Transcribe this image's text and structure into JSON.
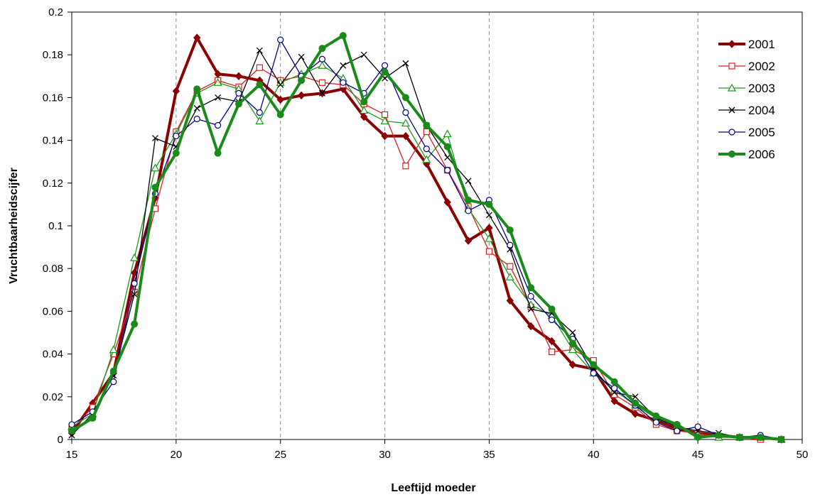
{
  "chart_data": {
    "type": "line",
    "title": "",
    "xlabel": "Leeftijd moeder",
    "ylabel": "Vruchtbaarheidscijfer",
    "xlim": [
      15,
      50
    ],
    "ylim": [
      0,
      0.2
    ],
    "xticks": [
      15,
      20,
      25,
      30,
      35,
      40,
      45,
      50
    ],
    "yticks": [
      0,
      0.02,
      0.04,
      0.06,
      0.08,
      0.1,
      0.12,
      0.14,
      0.16,
      0.18,
      0.2
    ],
    "xtick_labels": [
      "15",
      "20",
      "25",
      "30",
      "35",
      "40",
      "45",
      "50"
    ],
    "ytick_labels": [
      "0",
      "0.02",
      "0.04",
      "0.06",
      "0.08",
      "0.1",
      "0.12",
      "0.14",
      "0.16",
      "0.18",
      "0.2"
    ],
    "grid": "vertical dashed",
    "legend": "top-right",
    "x": [
      15,
      16,
      17,
      18,
      19,
      20,
      21,
      22,
      23,
      24,
      25,
      26,
      27,
      28,
      29,
      30,
      31,
      32,
      33,
      34,
      35,
      36,
      37,
      38,
      39,
      40,
      41,
      42,
      43,
      44,
      45,
      46,
      47,
      48,
      49
    ],
    "series": [
      {
        "name": "2001",
        "color": "#8b0000",
        "marker": "diamond",
        "width": 4,
        "values": [
          0.003,
          0.017,
          0.031,
          0.078,
          0.113,
          0.163,
          0.188,
          0.171,
          0.17,
          0.168,
          0.159,
          0.161,
          0.162,
          0.164,
          0.151,
          0.142,
          0.142,
          0.129,
          0.111,
          0.093,
          0.099,
          0.065,
          0.053,
          0.046,
          0.035,
          0.033,
          0.018,
          0.012,
          0.009,
          0.005,
          0.003,
          0.002,
          0.001,
          0.001,
          0.0
        ]
      },
      {
        "name": "2002",
        "color": "#e8191e",
        "marker": "square",
        "width": 1.3,
        "values": [
          0.005,
          0.015,
          0.04,
          0.069,
          0.108,
          0.144,
          0.163,
          0.168,
          0.165,
          0.174,
          0.168,
          0.17,
          0.167,
          0.166,
          0.157,
          0.152,
          0.128,
          0.144,
          0.126,
          0.109,
          0.088,
          0.081,
          0.062,
          0.041,
          0.042,
          0.037,
          0.021,
          0.015,
          0.007,
          0.004,
          0.003,
          0.001,
          0.001,
          0.0,
          0.0
        ]
      },
      {
        "name": "2003",
        "color": "#1a9a1a",
        "marker": "triangle",
        "width": 1.3,
        "values": [
          0.006,
          0.012,
          0.042,
          0.085,
          0.127,
          0.143,
          0.162,
          0.167,
          0.164,
          0.149,
          0.167,
          0.171,
          0.175,
          0.169,
          0.154,
          0.149,
          0.148,
          0.131,
          0.143,
          0.108,
          0.094,
          0.076,
          0.063,
          0.058,
          0.042,
          0.031,
          0.023,
          0.016,
          0.01,
          0.006,
          0.002,
          0.001,
          0.001,
          0.001,
          0.0
        ]
      },
      {
        "name": "2004",
        "color": "#000000",
        "marker": "x",
        "width": 1.3,
        "values": [
          0.002,
          0.012,
          0.03,
          0.068,
          0.141,
          0.137,
          0.155,
          0.16,
          0.158,
          0.182,
          0.166,
          0.179,
          0.162,
          0.175,
          0.18,
          0.169,
          0.176,
          0.147,
          0.132,
          0.121,
          0.105,
          0.089,
          0.061,
          0.059,
          0.05,
          0.033,
          0.022,
          0.02,
          0.01,
          0.006,
          0.004,
          0.003,
          0.001,
          0.001,
          0.0
        ]
      },
      {
        "name": "2005",
        "color": "#00008b",
        "marker": "circle",
        "width": 1.3,
        "values": [
          0.007,
          0.013,
          0.027,
          0.073,
          0.115,
          0.142,
          0.15,
          0.147,
          0.162,
          0.153,
          0.187,
          0.17,
          0.178,
          0.167,
          0.162,
          0.175,
          0.153,
          0.136,
          0.126,
          0.107,
          0.112,
          0.091,
          0.067,
          0.056,
          0.047,
          0.031,
          0.024,
          0.016,
          0.008,
          0.004,
          0.006,
          0.002,
          0.001,
          0.002,
          0.0
        ]
      },
      {
        "name": "2006",
        "color": "#1a8a1a",
        "marker": "dot",
        "width": 4,
        "values": [
          0.004,
          0.01,
          0.032,
          0.054,
          0.118,
          0.134,
          0.164,
          0.134,
          0.157,
          0.166,
          0.152,
          0.168,
          0.183,
          0.189,
          0.158,
          0.172,
          0.16,
          0.147,
          0.137,
          0.112,
          0.11,
          0.098,
          0.071,
          0.061,
          0.045,
          0.035,
          0.027,
          0.017,
          0.011,
          0.007,
          0.001,
          0.002,
          0.001,
          0.001,
          0.0
        ]
      }
    ]
  }
}
